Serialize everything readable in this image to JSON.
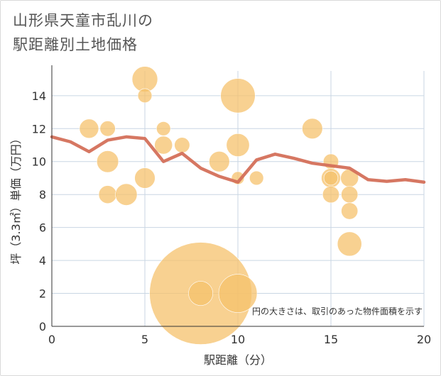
{
  "title_line1": "山形県天童市乱川の",
  "title_line2": "駅距離別土地価格",
  "chart_data": {
    "type": "scatter",
    "title": "山形県天童市乱川の駅距離別土地価格",
    "xlabel": "駅距離（分）",
    "ylabel": "坪（3.3㎡）単価（万円）",
    "xlim": [
      0,
      20
    ],
    "ylim": [
      0,
      15.5
    ],
    "x_ticks": [
      0,
      5,
      10,
      15,
      20
    ],
    "y_ticks": [
      0,
      2,
      4,
      6,
      8,
      10,
      12,
      14
    ],
    "grid": true,
    "bubble_note": "円の大きさは、取引のあった物件面積を示す",
    "bubble_color": "#f5c16c",
    "line_color": "#d4705a",
    "bubbles": [
      {
        "x": 2,
        "y": 12,
        "size": 1.5
      },
      {
        "x": 3,
        "y": 12,
        "size": 1.2
      },
      {
        "x": 3,
        "y": 10,
        "size": 1.7
      },
      {
        "x": 3,
        "y": 8,
        "size": 1.4
      },
      {
        "x": 4,
        "y": 8,
        "size": 1.7
      },
      {
        "x": 5,
        "y": 15,
        "size": 2.0
      },
      {
        "x": 5,
        "y": 14,
        "size": 1.1
      },
      {
        "x": 5,
        "y": 9,
        "size": 1.6
      },
      {
        "x": 6,
        "y": 12,
        "size": 1.1
      },
      {
        "x": 6,
        "y": 11,
        "size": 1.4
      },
      {
        "x": 7,
        "y": 11,
        "size": 1.2
      },
      {
        "x": 8,
        "y": 2,
        "size": 8.0
      },
      {
        "x": 8,
        "y": 2,
        "size": 1.9
      },
      {
        "x": 9,
        "y": 10,
        "size": 1.6
      },
      {
        "x": 10,
        "y": 14,
        "size": 2.7
      },
      {
        "x": 10,
        "y": 11,
        "size": 1.8
      },
      {
        "x": 10,
        "y": 9,
        "size": 1.0
      },
      {
        "x": 10,
        "y": 2,
        "size": 3.0
      },
      {
        "x": 11,
        "y": 9,
        "size": 1.1
      },
      {
        "x": 14,
        "y": 12,
        "size": 1.6
      },
      {
        "x": 15,
        "y": 10,
        "size": 1.2
      },
      {
        "x": 15,
        "y": 9,
        "size": 1.5
      },
      {
        "x": 15,
        "y": 9,
        "size": 1.1
      },
      {
        "x": 15,
        "y": 8,
        "size": 1.3
      },
      {
        "x": 16,
        "y": 9,
        "size": 1.4
      },
      {
        "x": 16,
        "y": 8,
        "size": 1.3
      },
      {
        "x": 16,
        "y": 7,
        "size": 1.3
      },
      {
        "x": 16,
        "y": 5,
        "size": 1.9
      }
    ],
    "trend_line": {
      "x": [
        0,
        1,
        2,
        3,
        4,
        5,
        6,
        7,
        8,
        9,
        10,
        11,
        12,
        13,
        14,
        15,
        16,
        17,
        18,
        19,
        20
      ],
      "y": [
        11.5,
        11.2,
        10.6,
        11.3,
        11.5,
        11.4,
        10.0,
        10.5,
        9.6,
        9.1,
        8.75,
        10.1,
        10.45,
        10.2,
        9.9,
        9.75,
        9.6,
        8.9,
        8.8,
        8.9,
        8.75
      ]
    }
  }
}
